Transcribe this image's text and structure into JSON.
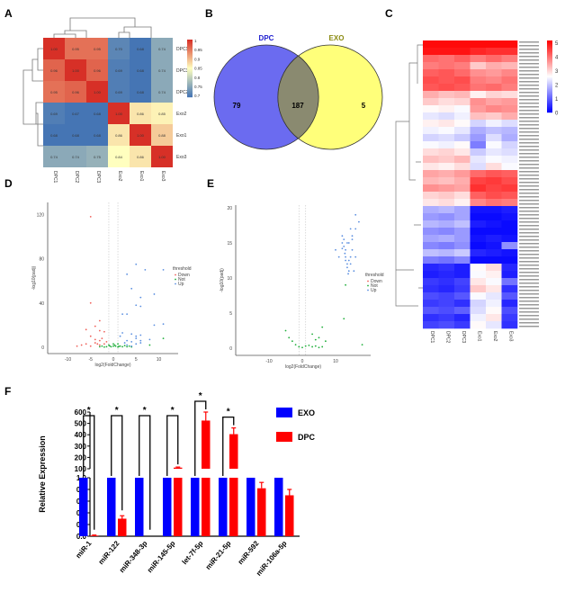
{
  "panels": {
    "a": "A",
    "b": "B",
    "c": "C",
    "d": "D",
    "e": "E",
    "f": "F"
  },
  "chart_data": [
    {
      "panel": "A",
      "type": "heatmap",
      "rows": [
        "DPC1",
        "DPC3",
        "DPC2",
        "Exo2",
        "Exo1",
        "Exo3"
      ],
      "columns": [
        "DPC1",
        "DPC2",
        "DPC3",
        "Exo2",
        "Exo1",
        "Exo3"
      ],
      "values": [
        [
          1,
          0.95,
          0.95,
          0.7,
          0.68,
          0.74
        ],
        [
          0.96,
          1,
          0.96,
          0.69,
          0.68,
          0.74
        ],
        [
          0.95,
          0.96,
          1,
          0.69,
          0.68,
          0.74
        ],
        [
          0.69,
          0.67,
          0.68,
          1,
          0.86,
          0.85
        ],
        [
          0.68,
          0.68,
          0.68,
          0.86,
          1,
          0.88
        ],
        [
          0.74,
          0.74,
          0.75,
          0.84,
          0.86,
          1
        ]
      ],
      "colorbar_ticks": [
        1,
        0.95,
        0.9,
        0.85,
        0.8,
        0.75,
        0.7
      ],
      "colors": {
        "low": "#4575b4",
        "mid": "#ffffbf",
        "high": "#d73027"
      }
    },
    {
      "panel": "B",
      "type": "venn",
      "sets": [
        {
          "name": "DPC",
          "color": "#6b6bf0",
          "label_color": "#2020d0"
        },
        {
          "name": "EXO",
          "color": "#ffff7a",
          "label_color": "#8a8a10"
        }
      ],
      "only_DPC": 79,
      "both": 187,
      "only_EXO": 5
    },
    {
      "panel": "C",
      "type": "heatmap",
      "columns": [
        "DPC1",
        "DPC2",
        "DPC3",
        "Exo1",
        "Exo2",
        "Exo3"
      ],
      "colorbar_ticks": [
        5,
        4,
        3,
        2,
        1,
        0
      ],
      "colors": {
        "low": "#0000ff",
        "mid": "#ffffff",
        "high": "#ff0000"
      },
      "values": [
        [
          5.2,
          5.2,
          5.2,
          5.2,
          5.2,
          5.2
        ],
        [
          5.1,
          5.1,
          5.1,
          4.9,
          4.8,
          4.8
        ],
        [
          4.2,
          4.1,
          4.3,
          4.0,
          4.2,
          4.0
        ],
        [
          4.0,
          4.1,
          4.0,
          3.2,
          3.5,
          3.4
        ],
        [
          4.3,
          4.4,
          4.2,
          3.8,
          3.7,
          3.9
        ],
        [
          4.5,
          4.4,
          4.5,
          4.0,
          3.9,
          4.1
        ],
        [
          4.4,
          4.5,
          4.4,
          4.1,
          4.2,
          4.0
        ],
        [
          3.5,
          3.3,
          3.4,
          2.8,
          3.1,
          3.0
        ],
        [
          3.2,
          3.0,
          3.1,
          3.8,
          3.6,
          3.7
        ],
        [
          2.7,
          2.8,
          2.6,
          3.7,
          3.9,
          3.8
        ],
        [
          2.4,
          2.3,
          2.5,
          3.3,
          3.2,
          3.5
        ],
        [
          2.8,
          2.9,
          2.7,
          2.2,
          2.5,
          2.3
        ],
        [
          2.5,
          2.6,
          2.4,
          1.8,
          2.0,
          1.9
        ],
        [
          2.2,
          2.3,
          2.1,
          1.6,
          2.3,
          1.8
        ],
        [
          2.6,
          2.5,
          2.7,
          1.3,
          2.6,
          2.2
        ],
        [
          3.0,
          3.1,
          2.9,
          2.1,
          2.4,
          2.3
        ],
        [
          3.3,
          3.2,
          3.4,
          2.4,
          2.6,
          2.5
        ],
        [
          2.9,
          2.8,
          3.0,
          2.3,
          3.0,
          2.6
        ],
        [
          3.6,
          3.5,
          3.7,
          4.2,
          4.4,
          4.3
        ],
        [
          3.4,
          3.3,
          3.5,
          4.6,
          4.7,
          4.5
        ],
        [
          3.8,
          3.7,
          3.6,
          4.8,
          4.6,
          4.7
        ],
        [
          3.1,
          3.2,
          3.0,
          4.3,
          4.5,
          4.4
        ],
        [
          2.9,
          3.0,
          2.8,
          3.9,
          4.1,
          4.0
        ],
        [
          1.8,
          1.9,
          1.7,
          0.2,
          0.2,
          0.3
        ],
        [
          1.6,
          1.5,
          1.7,
          0.1,
          0.1,
          0.2
        ],
        [
          1.9,
          1.8,
          2.0,
          0.3,
          0.2,
          0.1
        ],
        [
          1.5,
          1.4,
          1.6,
          0.1,
          0.1,
          0.1
        ],
        [
          1.7,
          1.8,
          1.6,
          0.2,
          0.3,
          0.2
        ],
        [
          1.4,
          1.3,
          1.5,
          0.1,
          0.2,
          1.5
        ],
        [
          2.0,
          1.9,
          2.1,
          0.4,
          0.3,
          0.2
        ],
        [
          1.3,
          1.2,
          1.4,
          0.1,
          0.1,
          0.1
        ],
        [
          0.4,
          0.5,
          0.3,
          2.7,
          3.0,
          0.4
        ],
        [
          0.3,
          0.4,
          0.3,
          2.6,
          2.8,
          0.3
        ],
        [
          0.6,
          0.5,
          0.7,
          2.9,
          2.6,
          1.2
        ],
        [
          0.5,
          0.4,
          0.6,
          3.2,
          2.9,
          0.5
        ],
        [
          0.8,
          0.7,
          0.9,
          2.6,
          2.4,
          0.9
        ],
        [
          0.6,
          0.7,
          0.5,
          2.2,
          2.5,
          0.4
        ],
        [
          0.9,
          0.8,
          1.0,
          2.3,
          2.7,
          0.8
        ],
        [
          0.5,
          0.6,
          0.4,
          2.5,
          2.9,
          0.6
        ],
        [
          0.7,
          0.8,
          0.6,
          2.7,
          2.4,
          0.5
        ]
      ]
    },
    {
      "panel": "D",
      "type": "scatter",
      "xlabel": "log2(FoldChange)",
      "ylabel": "-log10(padj)",
      "xticks": [
        -10,
        -5,
        0,
        5,
        10
      ],
      "yticks": [
        0,
        40,
        80,
        120
      ],
      "xlim": [
        -14,
        15
      ],
      "ylim": [
        0,
        128
      ],
      "thresholds_x": [
        -1,
        1
      ],
      "legend": {
        "title": "threshold",
        "entries": [
          "Down",
          "Not",
          "Up"
        ]
      },
      "colors": {
        "Down": "#f0605a",
        "Not": "#1fae3a",
        "Up": "#5b8fe0"
      },
      "points": {
        "Up": [
          [
            5,
            75
          ],
          [
            7,
            70
          ],
          [
            11,
            70
          ],
          [
            3,
            66
          ],
          [
            4,
            53
          ],
          [
            9,
            48
          ],
          [
            6,
            45
          ],
          [
            5,
            38
          ],
          [
            6,
            37
          ],
          [
            2,
            30
          ],
          [
            3,
            30
          ],
          [
            9,
            20
          ],
          [
            11,
            21
          ],
          [
            2,
            13
          ],
          [
            4,
            12
          ],
          [
            5,
            10
          ],
          [
            6,
            11
          ],
          [
            3,
            6
          ],
          [
            4,
            5
          ],
          [
            5,
            3
          ],
          [
            6,
            4
          ],
          [
            8,
            7
          ],
          [
            3,
            2
          ],
          [
            4,
            1
          ],
          [
            5,
            8
          ],
          [
            6,
            6
          ],
          [
            2.5,
            4
          ],
          [
            1.5,
            10
          ]
        ],
        "Down": [
          [
            -5,
            118
          ],
          [
            -5,
            40
          ],
          [
            -3,
            24
          ],
          [
            -4,
            19
          ],
          [
            -6,
            16
          ],
          [
            -3,
            15
          ],
          [
            -2,
            14
          ],
          [
            -5,
            10
          ],
          [
            -3,
            6
          ],
          [
            -4,
            4
          ],
          [
            -2,
            3
          ],
          [
            -6,
            3
          ],
          [
            -7,
            2
          ],
          [
            -3,
            2
          ],
          [
            -5,
            1
          ],
          [
            -8,
            1
          ],
          [
            -2.5,
            8
          ],
          [
            -4,
            7
          ],
          [
            -1.5,
            5
          ],
          [
            -3.5,
            3
          ]
        ],
        "Not": [
          [
            -1,
            2
          ],
          [
            0,
            1
          ],
          [
            1,
            3
          ],
          [
            -0.5,
            0.5
          ],
          [
            0.5,
            1
          ],
          [
            1.5,
            1
          ],
          [
            2,
            0.5
          ],
          [
            -1.5,
            0.5
          ],
          [
            0,
            3
          ],
          [
            1,
            0.2
          ],
          [
            3,
            0.5
          ],
          [
            4,
            0.3
          ],
          [
            -2,
            0.2
          ],
          [
            2.5,
            1.5
          ],
          [
            -0.8,
            1.2
          ],
          [
            0.3,
            2
          ],
          [
            1.2,
            0.8
          ],
          [
            3.5,
            1
          ],
          [
            -2.5,
            1
          ],
          [
            -3,
            0.5
          ],
          [
            11,
            8
          ],
          [
            8,
            2
          ]
        ]
      }
    },
    {
      "panel": "E",
      "type": "scatter",
      "xlabel": "log2(FoldChange)",
      "ylabel": "-log10(padj)",
      "xticks": [
        -10,
        0,
        10
      ],
      "yticks": [
        0,
        5,
        10,
        15,
        20
      ],
      "xlim": [
        -19,
        20
      ],
      "ylim": [
        0,
        21
      ],
      "thresholds_x": [
        -1,
        1
      ],
      "legend": {
        "title": "threshold",
        "entries": [
          "Down",
          "Not",
          "Up"
        ]
      },
      "colors": {
        "Down": "#f0605a",
        "Not": "#1fae3a",
        "Up": "#5b8fe0"
      },
      "points": {
        "Up": [
          [
            10,
            14
          ],
          [
            11,
            13
          ],
          [
            12,
            16
          ],
          [
            12,
            15
          ],
          [
            12.5,
            15.5
          ],
          [
            12.5,
            14.5
          ],
          [
            13,
            14
          ],
          [
            13,
            13
          ],
          [
            13.5,
            12
          ],
          [
            13.5,
            11.5
          ],
          [
            14,
            12.5
          ],
          [
            14,
            11
          ],
          [
            14.5,
            12
          ],
          [
            14,
            15
          ],
          [
            15,
            16
          ],
          [
            15,
            15.5
          ],
          [
            15,
            14
          ],
          [
            14.5,
            13
          ],
          [
            13,
            12.5
          ],
          [
            13.5,
            15
          ],
          [
            12,
            14.2
          ],
          [
            16,
            17
          ],
          [
            16,
            19
          ],
          [
            17,
            18
          ],
          [
            14.5,
            17
          ],
          [
            15.5,
            11
          ],
          [
            16,
            13
          ],
          [
            13.8,
            10.6
          ],
          [
            12.8,
            13.5
          ]
        ],
        "Down": [],
        "Not": [
          [
            -5,
            2.5
          ],
          [
            -4,
            1.5
          ],
          [
            -3,
            1
          ],
          [
            -2,
            0.5
          ],
          [
            -1,
            0.2
          ],
          [
            0,
            0.1
          ],
          [
            1,
            0.3
          ],
          [
            2,
            0.4
          ],
          [
            3,
            0.2
          ],
          [
            4,
            0.3
          ],
          [
            5,
            0.1
          ],
          [
            6,
            0.2
          ],
          [
            3,
            2
          ],
          [
            5,
            1.5
          ],
          [
            7,
            1
          ],
          [
            6,
            3
          ],
          [
            4,
            1.2
          ],
          [
            13,
            9
          ],
          [
            12.5,
            4.2
          ],
          [
            18,
            0.5
          ]
        ]
      }
    },
    {
      "panel": "F",
      "type": "bar",
      "ylabel": "Relative Expression",
      "categories": [
        "miR-1",
        "miR-122",
        "miR-348-3p",
        "miR-145-5p",
        "let-7f-5p",
        "miR-21-5p",
        "miR-592",
        "miR-106a-5p"
      ],
      "yticks_lower": [
        0.0,
        0.2,
        0.4,
        0.6,
        0.8,
        1.0
      ],
      "yticks_upper": [
        100,
        200,
        300,
        400,
        500,
        600
      ],
      "ylim_lower": [
        0,
        1.0
      ],
      "ylim_upper": [
        100,
        600
      ],
      "series": [
        {
          "name": "EXO",
          "color": "#0000ff",
          "values": [
            1,
            1,
            1,
            1,
            1,
            1,
            1,
            1
          ],
          "errors": [
            0,
            0,
            0,
            0,
            0,
            0,
            0,
            0
          ]
        },
        {
          "name": "DPC",
          "color": "#ff0000",
          "values": [
            0.01,
            0.3,
            0,
            110,
            525,
            405,
            0.82,
            0.7
          ],
          "errors": [
            0.01,
            0.05,
            0,
            5,
            75,
            55,
            0.1,
            0.1
          ]
        }
      ],
      "significance": [
        "*",
        "*",
        "*",
        "*",
        "*",
        "*",
        "",
        ""
      ]
    }
  ]
}
